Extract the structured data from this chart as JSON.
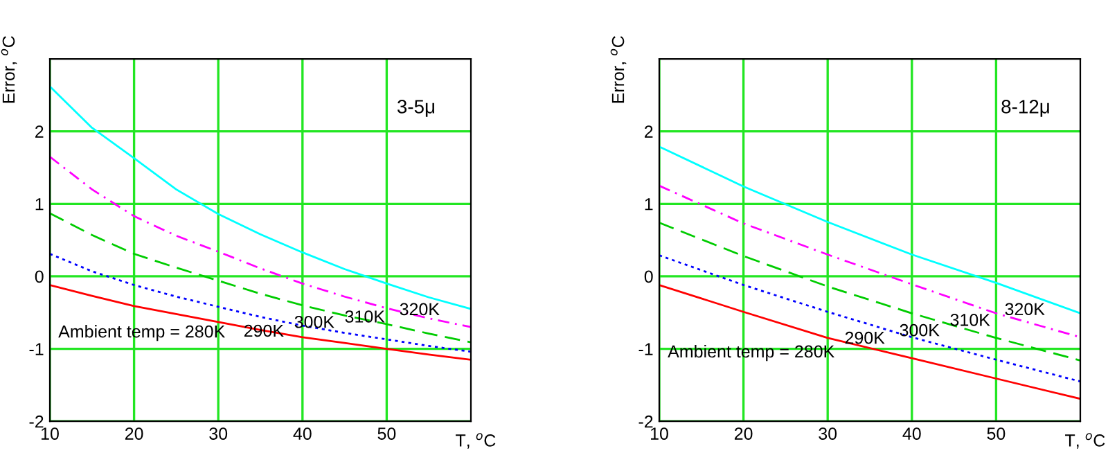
{
  "chart_data": [
    {
      "type": "line",
      "xlabel": "T, $^{o}$C",
      "ylabel": "Error, $^{o}$C",
      "annotations": [
        "3-5μ"
      ],
      "xlim": [
        10,
        60
      ],
      "xticks": [
        10,
        20,
        30,
        40,
        50
      ],
      "ylim": [
        -2,
        3
      ],
      "yticks": [
        -2,
        -1,
        0,
        1,
        2
      ],
      "grid": true,
      "legend": false,
      "x": [
        10,
        15,
        20,
        25,
        30,
        35,
        40,
        45,
        50,
        55,
        60
      ],
      "series": [
        {
          "name": "Ambient temp = 280K",
          "color": "#ff0000",
          "line_style": "solid",
          "values": [
            -0.12,
            -0.27,
            -0.41,
            -0.52,
            -0.63,
            -0.74,
            -0.84,
            -0.92,
            -1.0,
            -1.08,
            -1.15
          ]
        },
        {
          "name": "290K",
          "color": "#0000ff",
          "line_style": "dotted",
          "values": [
            0.31,
            0.07,
            -0.12,
            -0.28,
            -0.42,
            -0.56,
            -0.68,
            -0.78,
            -0.87,
            -0.96,
            -1.04
          ]
        },
        {
          "name": "300K",
          "color": "#00cc00",
          "line_style": "dashed",
          "values": [
            0.87,
            0.57,
            0.31,
            0.12,
            -0.06,
            -0.24,
            -0.4,
            -0.54,
            -0.66,
            -0.79,
            -0.91
          ]
        },
        {
          "name": "310K",
          "color": "#ff00ff",
          "line_style": "dashdot",
          "values": [
            1.65,
            1.2,
            0.83,
            0.56,
            0.34,
            0.11,
            -0.1,
            -0.28,
            -0.44,
            -0.58,
            -0.7
          ]
        },
        {
          "name": "320K",
          "color": "#00ffff",
          "line_style": "solid",
          "values": [
            2.62,
            2.05,
            1.63,
            1.2,
            0.86,
            0.58,
            0.33,
            0.1,
            -0.1,
            -0.29,
            -0.45
          ]
        }
      ]
    },
    {
      "type": "line",
      "xlabel": "T, $^{o}$C",
      "ylabel": "Error, $^{o}$C",
      "annotations": [
        "8-12μ"
      ],
      "xlim": [
        10,
        60
      ],
      "xticks": [
        10,
        20,
        30,
        40,
        50
      ],
      "ylim": [
        -2,
        3
      ],
      "yticks": [
        -2,
        -1,
        0,
        1,
        2
      ],
      "grid": true,
      "legend": false,
      "x": [
        10,
        20,
        30,
        40,
        50,
        60
      ],
      "series": [
        {
          "name": "Ambient temp = 280K",
          "color": "#ff0000",
          "line_style": "solid",
          "values": [
            -0.12,
            -0.49,
            -0.85,
            -1.13,
            -1.41,
            -1.69
          ]
        },
        {
          "name": "290K",
          "color": "#0000ff",
          "line_style": "dotted",
          "values": [
            0.29,
            -0.12,
            -0.49,
            -0.84,
            -1.15,
            -1.45
          ]
        },
        {
          "name": "300K",
          "color": "#00cc00",
          "line_style": "dashed",
          "values": [
            0.74,
            0.28,
            -0.14,
            -0.51,
            -0.85,
            -1.16
          ]
        },
        {
          "name": "310K",
          "color": "#ff00ff",
          "line_style": "dashdot",
          "values": [
            1.25,
            0.73,
            0.3,
            -0.11,
            -0.51,
            -0.84
          ]
        },
        {
          "name": "320K",
          "color": "#00ffff",
          "line_style": "solid",
          "values": [
            1.79,
            1.24,
            0.75,
            0.3,
            -0.09,
            -0.51
          ]
        }
      ]
    }
  ]
}
